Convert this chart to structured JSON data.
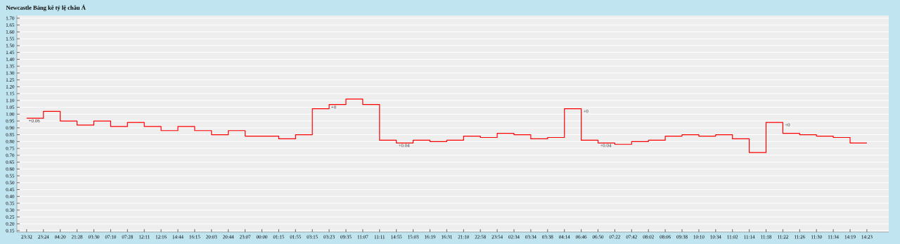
{
  "chart_data": {
    "type": "step",
    "title": "Newcastle Bảng kê tỷ lệ châu Á",
    "categories": [
      "23:32",
      "23:24",
      "04:20",
      "21:28",
      "03:30",
      "07:10",
      "07:28",
      "12:11",
      "12:16",
      "14:44",
      "16:15",
      "20:03",
      "20:44",
      "23:07",
      "00:00",
      "01:15",
      "01:55",
      "03:15",
      "03:23",
      "09:35",
      "11:07",
      "11:11",
      "14:55",
      "15:03",
      "16:19",
      "16:31",
      "21:10",
      "22:58",
      "23:54",
      "02:34",
      "03:34",
      "03:38",
      "04:14",
      "06:46",
      "06:50",
      "07:22",
      "07:42",
      "08:02",
      "08:06",
      "09:38",
      "10:10",
      "10:34",
      "11:02",
      "11:14",
      "11:18",
      "11:22",
      "11:26",
      "11:30",
      "11:34",
      "14:19",
      "14:23"
    ],
    "values": [
      0.97,
      1.02,
      0.95,
      0.92,
      0.95,
      0.91,
      0.94,
      0.91,
      0.88,
      0.91,
      0.88,
      0.85,
      0.88,
      0.84,
      0.84,
      0.82,
      0.85,
      1.04,
      1.07,
      1.11,
      1.07,
      0.81,
      0.79,
      0.81,
      0.8,
      0.81,
      0.84,
      0.83,
      0.86,
      0.85,
      0.82,
      0.83,
      1.04,
      0.81,
      0.79,
      0.78,
      0.8,
      0.81,
      0.84,
      0.85,
      0.84,
      0.85,
      0.82,
      0.72,
      0.94,
      0.86,
      0.85,
      0.84,
      0.83,
      0.79,
      0.79
    ],
    "color": "#ff0000",
    "ylim": [
      0.14,
      1.72
    ],
    "yticks": [
      {
        "value": 0.15,
        "label": "0.15"
      },
      {
        "value": 0.2,
        "label": "0.20"
      },
      {
        "value": 0.25,
        "label": "0.25"
      },
      {
        "value": 0.3,
        "label": "0.30"
      },
      {
        "value": 0.35,
        "label": "0.35"
      },
      {
        "value": 0.4,
        "label": "0.40"
      },
      {
        "value": 0.45,
        "label": "0.45"
      },
      {
        "value": 0.5,
        "label": "0.50"
      },
      {
        "value": 0.55,
        "label": "0.55"
      },
      {
        "value": 0.6,
        "label": "0.60"
      },
      {
        "value": 0.65,
        "label": "0.65"
      },
      {
        "value": 0.7,
        "label": "0.70"
      },
      {
        "value": 0.75,
        "label": "0.75"
      },
      {
        "value": 0.8,
        "label": "0.80"
      },
      {
        "value": 0.85,
        "label": "0.85"
      },
      {
        "value": 0.9,
        "label": "0.90"
      },
      {
        "value": 0.95,
        "label": "0.95"
      },
      {
        "value": 1.0,
        "label": "1.00"
      },
      {
        "value": 1.05,
        "label": "1.05"
      },
      {
        "value": 1.1,
        "label": "1.10"
      },
      {
        "value": 1.15,
        "label": "1.15"
      },
      {
        "value": 1.2,
        "label": "1.20"
      },
      {
        "value": 1.25,
        "label": "1.25"
      },
      {
        "value": 1.3,
        "label": "1.30"
      },
      {
        "value": 1.35,
        "label": "1.35"
      },
      {
        "value": 1.4,
        "label": "1.40"
      },
      {
        "value": 1.45,
        "label": "1.45"
      },
      {
        "value": 1.5,
        "label": "1.50"
      },
      {
        "value": 1.55,
        "label": "1.55"
      },
      {
        "value": 1.6,
        "label": "1.60"
      },
      {
        "value": 1.65,
        "label": "1.65"
      },
      {
        "value": 1.7,
        "label": "1.70"
      }
    ],
    "grid": "y",
    "marker": "none",
    "annotations": [
      {
        "text": "+0.06",
        "x": "23:32",
        "y": 0.97
      },
      {
        "text": "+0",
        "x": "03:23",
        "y": 1.07
      },
      {
        "text": "+0.04",
        "x": "14:55",
        "y": 0.79
      },
      {
        "text": "+0",
        "x": "06:46",
        "y": 1.04
      },
      {
        "text": "+0.04",
        "x": "06:50",
        "y": 0.79
      },
      {
        "text": "+0",
        "x": "11:22",
        "y": 0.94
      }
    ]
  }
}
